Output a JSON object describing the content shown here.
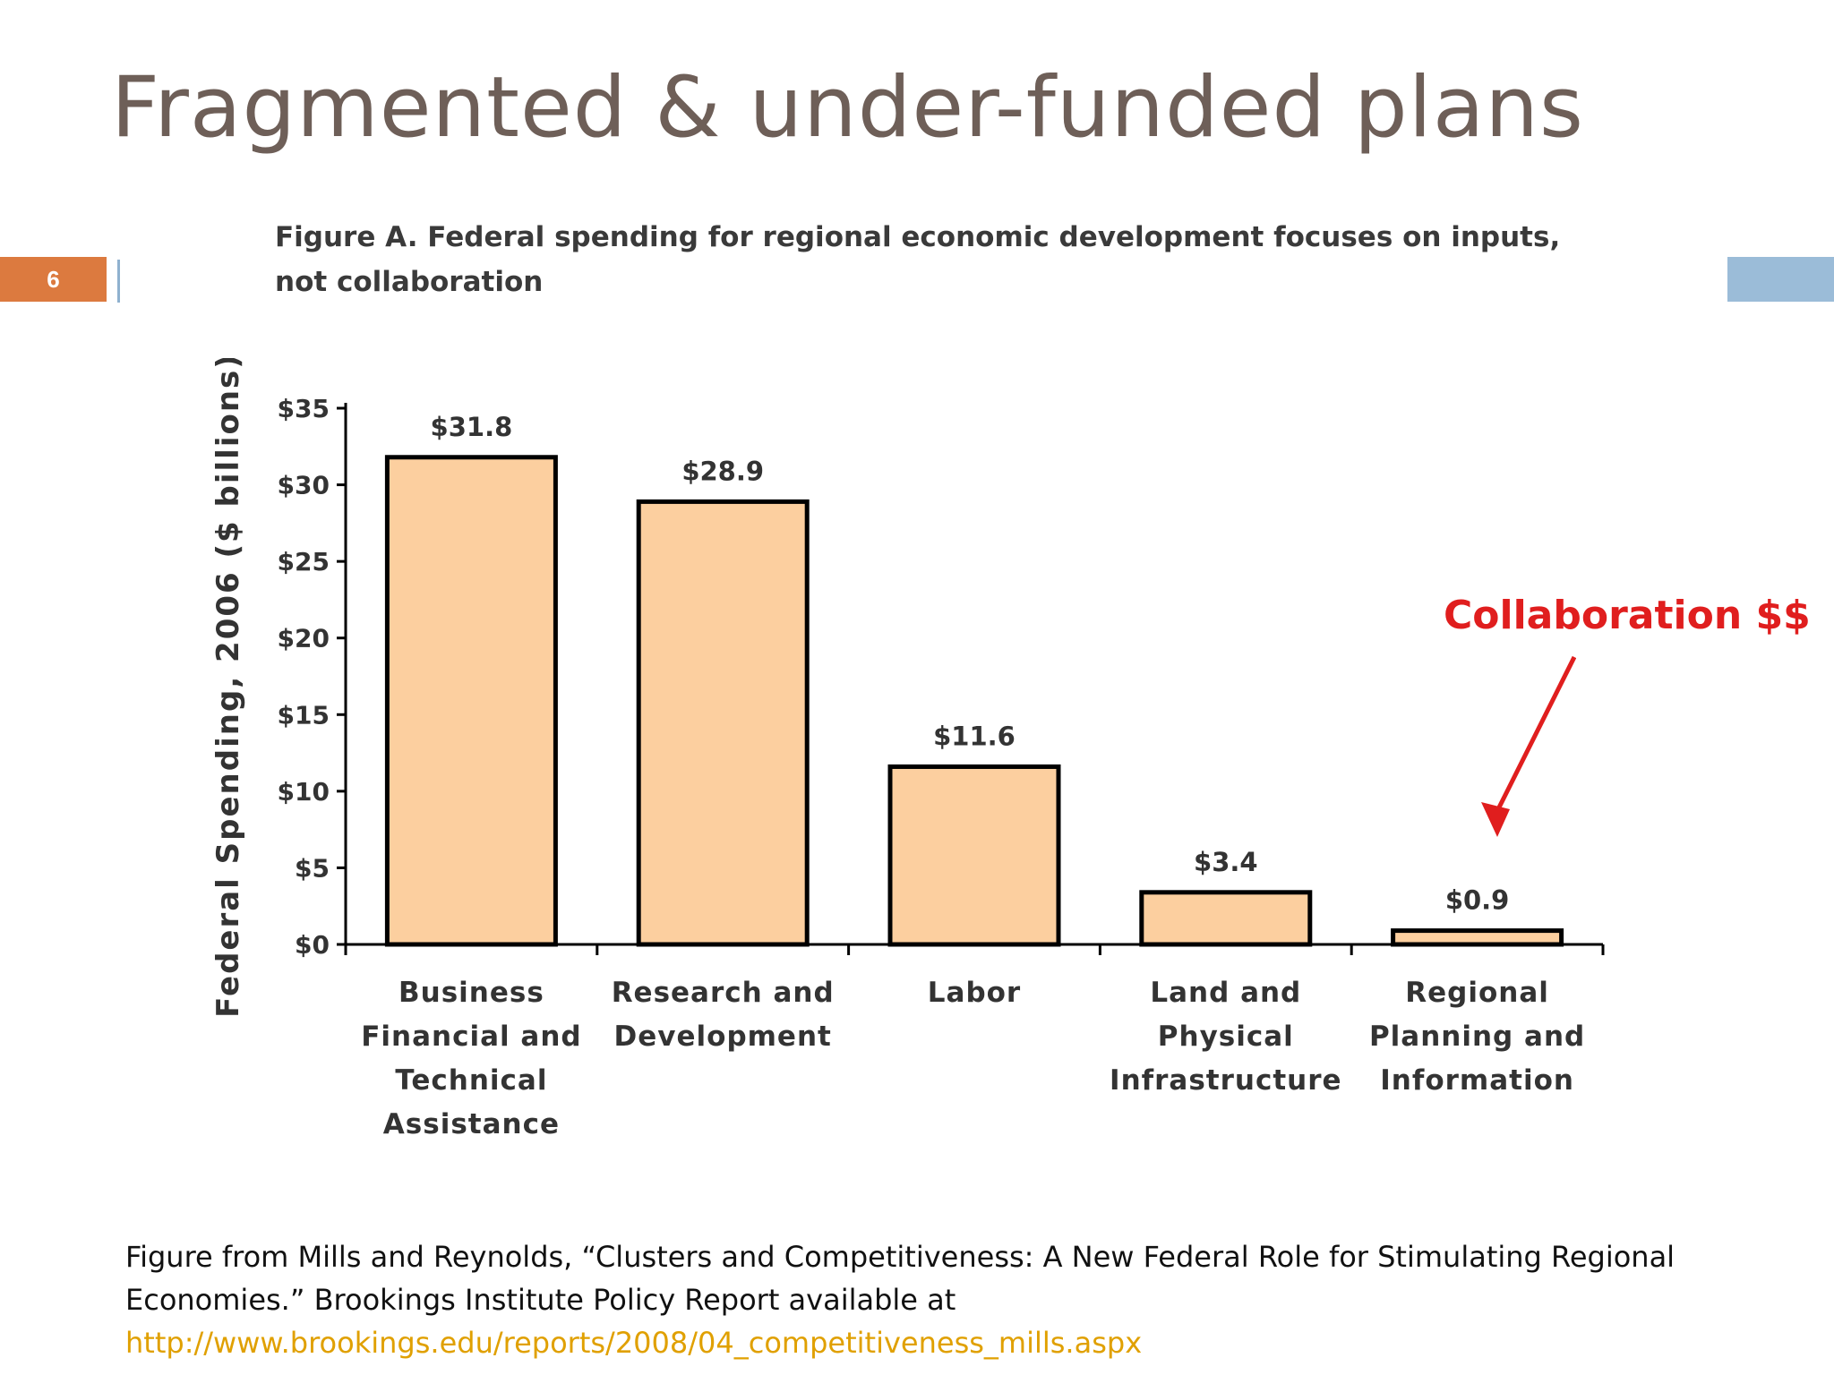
{
  "slide": {
    "title": "Fragmented & under-funded plans",
    "number": "6"
  },
  "figure_title": "Figure A. Federal spending for regional economic development focuses on inputs, not collaboration",
  "annotation": {
    "label": "Collaboration $$"
  },
  "caption": {
    "text": "Figure from Mills and Reynolds, “Clusters and Competitiveness: A New Federal Role for Stimulating Regional Economies.”  Brookings Institute Policy Report available at",
    "link": "http://www.brookings.edu/reports/2008/04_competitiveness_mills.aspx"
  },
  "colors": {
    "bar_fill": "#fccf9f",
    "bar_stroke": "#000000",
    "annotation": "#e01e1e",
    "link": "#e0a000",
    "title": "#6e5f58"
  },
  "chart_data": {
    "type": "bar",
    "title": "Figure A. Federal spending for regional economic development focuses on inputs, not collaboration",
    "ylabel": "Federal Spending, 2006 ($ billions)",
    "xlabel": "",
    "ylim": [
      0,
      35
    ],
    "yticks": [
      0,
      5,
      10,
      15,
      20,
      25,
      30,
      35
    ],
    "ytick_labels": [
      "$0",
      "$5",
      "$10",
      "$15",
      "$20",
      "$25",
      "$30",
      "$35"
    ],
    "categories": [
      [
        "Business",
        "Financial and",
        "Technical",
        "Assistance"
      ],
      [
        "Research and",
        "Development"
      ],
      [
        "Labor"
      ],
      [
        "Land and",
        "Physical",
        "Infrastructure"
      ],
      [
        "Regional",
        "Planning and",
        "Information"
      ]
    ],
    "values": [
      31.8,
      28.9,
      11.6,
      3.4,
      0.9
    ],
    "value_labels": [
      "$31.8",
      "$28.9",
      "$11.6",
      "$3.4",
      "$0.9"
    ],
    "grid": false,
    "legend": "none"
  }
}
